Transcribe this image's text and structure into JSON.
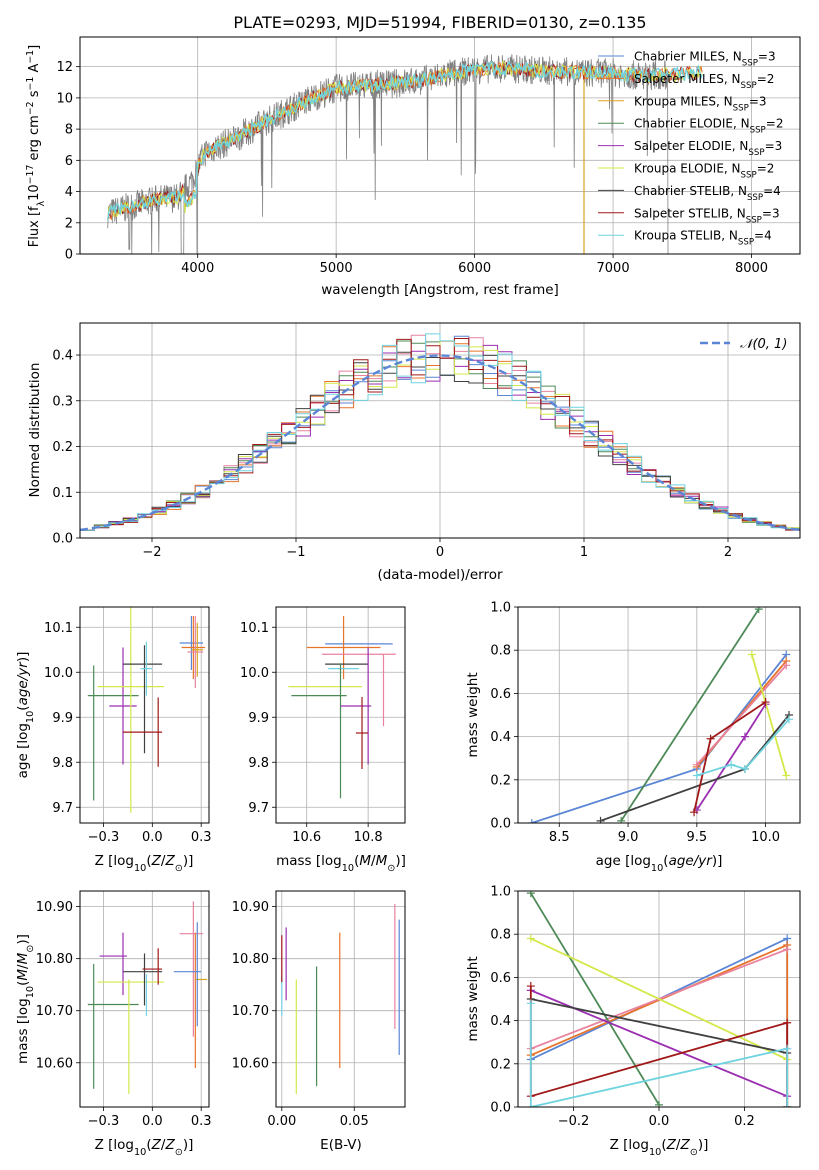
{
  "title": "PLATE=0293, MJD=51994, FIBERID=0130, z=0.135",
  "colors": {
    "Chabrier MILES": "#5b86d6",
    "Salpeter MILES": "#e8742a",
    "Kroupa MILES": "#d9a520",
    "Chabrier ELODIE": "#4e8a58",
    "Salpeter ELODIE": "#9a2fb0",
    "Kroupa ELODIE": "#d4e84a",
    "Chabrier STELIB": "#404040",
    "Salpeter STELIB": "#a01818",
    "Kroupa STELIB": "#6fd3e0",
    "pink": "#e8829e",
    "data": "#808080",
    "normal": "#5b86d6"
  },
  "chart_data": [
    {
      "type": "line",
      "panel": "spectrum",
      "title": "PLATE=0293, MJD=51994, FIBERID=0130, z=0.135",
      "xlabel": "wavelength [Angstrom, rest frame]",
      "ylabel": "Flux [fλ10⁻¹⁷ erg cm⁻² s⁻¹ A⁻¹]",
      "xlim": [
        3150,
        8350
      ],
      "ylim": [
        0,
        13.9
      ],
      "xticks": [
        4000,
        5000,
        6000,
        7000,
        8000
      ],
      "yticks": [
        0,
        2,
        4,
        6,
        8,
        10,
        12
      ],
      "legend_position": "right",
      "legend": [
        {
          "name": "Chabrier MILES",
          "N": "3"
        },
        {
          "name": "Salpeter MILES",
          "N": "2"
        },
        {
          "name": "Kroupa MILES",
          "N": "3"
        },
        {
          "name": "Chabrier ELODIE",
          "N": "2"
        },
        {
          "name": "Salpeter ELODIE",
          "N": "3"
        },
        {
          "name": "Kroupa ELODIE",
          "N": "2"
        },
        {
          "name": "Chabrier STELIB",
          "N": "4"
        },
        {
          "name": "Salpeter STELIB",
          "N": "3"
        },
        {
          "name": "Kroupa STELIB",
          "N": "4"
        }
      ],
      "continuum": {
        "x": [
          3350,
          3500,
          3700,
          3850,
          3950,
          4050,
          4250,
          4450,
          4650,
          4850,
          5000,
          5200,
          5400,
          5600,
          5800,
          6000,
          6200,
          6400,
          6600,
          6800,
          7000,
          7200,
          7400,
          7600,
          7800,
          8000
        ],
        "y": [
          2.6,
          3.0,
          3.5,
          3.6,
          4.6,
          6.5,
          7.3,
          8.3,
          9.2,
          10.1,
          10.6,
          10.8,
          10.9,
          11.1,
          11.5,
          11.8,
          11.9,
          11.8,
          11.7,
          11.6,
          11.6,
          11.4,
          11.5,
          11.6,
          11.7,
          11.7
        ]
      }
    },
    {
      "type": "bar",
      "panel": "residuals",
      "xlabel": "(data-model)/error",
      "ylabel": "Normed distribution",
      "xlim": [
        -2.5,
        2.5
      ],
      "ylim": [
        0,
        0.47
      ],
      "xticks": [
        -2,
        -1,
        0,
        1,
        2
      ],
      "yticks": [
        0.0,
        0.1,
        0.2,
        0.3,
        0.4
      ],
      "legend": [
        "𝒩(0, 1)"
      ],
      "legend_position": "top-right",
      "bin_width": 0.1
    },
    {
      "type": "scatter",
      "panel": "age-vs-Z",
      "xlabel": "Z [log₁₀(Z/Z⊙)]",
      "ylabel": "age  [log₁₀(age/yr)]",
      "xlim": [
        -0.37,
        0.29
      ],
      "ylim": [
        9.665,
        10.145
      ],
      "xticks": [
        -0.25,
        0.0,
        0.25
      ],
      "yticks": [
        9.7,
        9.8,
        9.9,
        10.0,
        10.1
      ],
      "points": [
        {
          "model": "Chabrier MILES",
          "x": 0.2,
          "xerr": 0.06,
          "y": 10.065,
          "yerr": 0.06
        },
        {
          "model": "Salpeter MILES",
          "x": 0.21,
          "xerr": 0.06,
          "y": 10.055,
          "yerr": 0.07
        },
        {
          "model": "pink",
          "x": 0.22,
          "xerr": 0.04,
          "y": 10.045,
          "yerr": 0.08
        },
        {
          "model": "Kroupa MILES",
          "x": 0.23,
          "xerr": 0.03,
          "y": 10.05,
          "yerr": 0.06
        },
        {
          "model": "Chabrier ELODIE",
          "x": -0.3,
          "xerr": 0.0,
          "y": 9.865,
          "yerr": 0.15
        },
        {
          "model": "Chabrier ELODIE",
          "x": -0.2,
          "xerr": 0.13,
          "y": 9.948,
          "yerr": 0.0
        },
        {
          "model": "Salpeter ELODIE",
          "x": -0.15,
          "xerr": 0.07,
          "y": 9.925,
          "yerr": 0.13
        },
        {
          "model": "Kroupa ELODIE",
          "x": -0.11,
          "xerr": 0.17,
          "y": 9.968,
          "yerr": 0.28
        },
        {
          "model": "Chabrier STELIB",
          "x": -0.05,
          "xerr": 0.1,
          "y": 10.018,
          "yerr": 0.0
        },
        {
          "model": "Chabrier STELIB",
          "x": -0.04,
          "xerr": 0.0,
          "y": 9.94,
          "yerr": 0.12
        },
        {
          "model": "Salpeter STELIB",
          "x": -0.05,
          "xerr": 0.1,
          "y": 9.867,
          "yerr": 0.0
        },
        {
          "model": "Salpeter STELIB",
          "x": 0.03,
          "xerr": 0.0,
          "y": 9.867,
          "yerr": 0.077
        },
        {
          "model": "Kroupa STELIB",
          "x": -0.03,
          "xerr": 0.03,
          "y": 10.008,
          "yerr": 0.06
        }
      ]
    },
    {
      "type": "scatter",
      "panel": "age-vs-mass",
      "xlabel": "mass [log₁₀(M/M⊙)]",
      "ylabel": "",
      "xlim": [
        10.5,
        10.92
      ],
      "ylim": [
        9.665,
        10.145
      ],
      "xticks": [
        10.6,
        10.8
      ],
      "yticks": [
        9.7,
        9.8,
        9.9,
        10.0,
        10.1
      ],
      "points": [
        {
          "model": "Chabrier MILES",
          "x": 10.77,
          "xerr": 0.11,
          "y": 10.063,
          "yerr": 0.0
        },
        {
          "model": "Salpeter MILES",
          "x": 10.72,
          "xerr": 0.12,
          "y": 10.055,
          "yerr": 0.07
        },
        {
          "model": "pink",
          "x": 10.77,
          "xerr": 0.12,
          "y": 10.04,
          "yerr": 0.0
        },
        {
          "model": "Chabrier STELIB",
          "x": 10.73,
          "xerr": 0.07,
          "y": 10.018,
          "yerr": 0.0
        },
        {
          "model": "Kroupa STELIB",
          "x": 10.72,
          "xerr": 0.05,
          "y": 10.008,
          "yerr": 0.0
        },
        {
          "model": "Kroupa ELODIE",
          "x": 10.66,
          "xerr": 0.12,
          "y": 9.968,
          "yerr": 0.0
        },
        {
          "model": "Chabrier ELODIE",
          "x": 10.64,
          "xerr": 0.09,
          "y": 9.948,
          "yerr": 0.0
        },
        {
          "model": "Chabrier ELODIE",
          "x": 10.71,
          "xerr": 0.0,
          "y": 9.87,
          "yerr": 0.15
        },
        {
          "model": "Salpeter ELODIE",
          "x": 10.76,
          "xerr": 0.05,
          "y": 9.925,
          "yerr": 0.0
        },
        {
          "model": "Salpeter ELODIE",
          "x": 10.8,
          "xerr": 0.0,
          "y": 9.925,
          "yerr": 0.13
        },
        {
          "model": "Salpeter STELIB",
          "x": 10.78,
          "xerr": 0.02,
          "y": 9.865,
          "yerr": 0.08
        },
        {
          "model": "pink",
          "x": 10.85,
          "xerr": 0.0,
          "y": 9.96,
          "yerr": 0.08
        }
      ]
    },
    {
      "type": "line",
      "panel": "mass-weight-vs-age",
      "xlabel": "age  [log₁₀(age/yr)]",
      "ylabel": "mass weight",
      "xlim": [
        8.2,
        10.25
      ],
      "ylim": [
        0,
        1
      ],
      "xticks": [
        8.5,
        9.0,
        9.5,
        10.0
      ],
      "yticks": [
        0.0,
        0.2,
        0.4,
        0.6,
        0.8,
        1.0
      ],
      "series": [
        {
          "model": "Chabrier MILES",
          "x": [
            8.3,
            9.5,
            10.15
          ],
          "y": [
            0.0,
            0.25,
            0.78
          ]
        },
        {
          "model": "Salpeter MILES",
          "x": [
            9.5,
            10.15
          ],
          "y": [
            0.26,
            0.75
          ]
        },
        {
          "model": "pink",
          "x": [
            9.5,
            10.15
          ],
          "y": [
            0.27,
            0.73
          ]
        },
        {
          "model": "Chabrier ELODIE",
          "x": [
            8.95,
            9.95
          ],
          "y": [
            0.01,
            0.99
          ]
        },
        {
          "model": "Salpeter ELODIE",
          "x": [
            9.5,
            9.85,
            10.0
          ],
          "y": [
            0.06,
            0.4,
            0.55
          ]
        },
        {
          "model": "Kroupa ELODIE",
          "x": [
            9.9,
            10.15
          ],
          "y": [
            0.78,
            0.22
          ]
        },
        {
          "model": "Chabrier STELIB",
          "x": [
            8.8,
            9.85,
            10.17
          ],
          "y": [
            0.01,
            0.25,
            0.5
          ]
        },
        {
          "model": "Salpeter STELIB",
          "x": [
            9.48,
            9.6,
            10.0
          ],
          "y": [
            0.05,
            0.39,
            0.56
          ]
        },
        {
          "model": "Kroupa STELIB",
          "x": [
            9.5,
            9.75,
            9.85,
            10.17
          ],
          "y": [
            0.22,
            0.27,
            0.25,
            0.48
          ]
        }
      ]
    },
    {
      "type": "scatter",
      "panel": "mass-vs-Z",
      "xlabel": "Z [log₁₀(Z/Z⊙)]",
      "ylabel": "mass [log₁₀(M/M⊙)]",
      "xlim": [
        -0.37,
        0.29
      ],
      "ylim": [
        10.515,
        10.93
      ],
      "xticks": [
        -0.25,
        0.0,
        0.25
      ],
      "yticks": [
        10.6,
        10.7,
        10.8,
        10.9
      ],
      "points": [
        {
          "model": "Chabrier ELODIE",
          "x": -0.3,
          "xerr": 0.0,
          "y": 10.67,
          "yerr": 0.12
        },
        {
          "model": "Chabrier ELODIE",
          "x": -0.2,
          "xerr": 0.13,
          "y": 10.712,
          "yerr": 0.0
        },
        {
          "model": "Salpeter ELODIE",
          "x": -0.2,
          "xerr": 0.07,
          "y": 10.805,
          "yerr": 0.0
        },
        {
          "model": "Salpeter ELODIE",
          "x": -0.15,
          "xerr": 0.0,
          "y": 10.79,
          "yerr": 0.06
        },
        {
          "model": "Kroupa ELODIE",
          "x": -0.11,
          "xerr": 0.17,
          "y": 10.755,
          "yerr": 0.0
        },
        {
          "model": "Kroupa ELODIE",
          "x": -0.12,
          "xerr": 0.0,
          "y": 10.65,
          "yerr": 0.11
        },
        {
          "model": "Chabrier STELIB",
          "x": -0.05,
          "xerr": 0.1,
          "y": 10.775,
          "yerr": 0.0
        },
        {
          "model": "Chabrier STELIB",
          "x": -0.04,
          "xerr": 0.0,
          "y": 10.76,
          "yerr": 0.05
        },
        {
          "model": "Salpeter STELIB",
          "x": 0.0,
          "xerr": 0.05,
          "y": 10.78,
          "yerr": 0.0
        },
        {
          "model": "Salpeter STELIB",
          "x": 0.03,
          "xerr": 0.0,
          "y": 10.785,
          "yerr": 0.035
        },
        {
          "model": "Kroupa STELIB",
          "x": -0.03,
          "xerr": 0.0,
          "y": 10.73,
          "yerr": 0.04
        },
        {
          "model": "pink",
          "x": 0.2,
          "xerr": 0.06,
          "y": 10.848,
          "yerr": 0.0
        },
        {
          "model": "pink",
          "x": 0.21,
          "xerr": 0.0,
          "y": 10.78,
          "yerr": 0.13
        },
        {
          "model": "Salpeter MILES",
          "x": 0.22,
          "xerr": 0.0,
          "y": 10.72,
          "yerr": 0.13
        },
        {
          "model": "Kroupa MILES",
          "x": 0.25,
          "xerr": 0.03,
          "y": 10.76,
          "yerr": 0.0
        },
        {
          "model": "Chabrier MILES",
          "x": 0.18,
          "xerr": 0.07,
          "y": 10.775,
          "yerr": 0.0
        },
        {
          "model": "Chabrier MILES",
          "x": 0.23,
          "xerr": 0.0,
          "y": 10.77,
          "yerr": 0.1
        }
      ]
    },
    {
      "type": "scatter",
      "panel": "mass-vs-EBV",
      "xlabel": "E(B-V)",
      "ylabel": "",
      "xlim": [
        -0.004,
        0.085
      ],
      "ylim": [
        10.515,
        10.93
      ],
      "xticks": [
        0.0,
        0.05
      ],
      "yticks": [
        10.6,
        10.7,
        10.8,
        10.9
      ],
      "points": [
        {
          "model": "Kroupa STELIB",
          "x": 0.0,
          "y": 10.73,
          "yerr": 0.04
        },
        {
          "model": "Salpeter STELIB",
          "x": 0.0,
          "y": 10.8,
          "yerr": 0.045
        },
        {
          "model": "Salpeter ELODIE",
          "x": 0.003,
          "y": 10.79,
          "yerr": 0.07
        },
        {
          "model": "Kroupa ELODIE",
          "x": 0.01,
          "y": 10.65,
          "yerr": 0.11
        },
        {
          "model": "Chabrier ELODIE",
          "x": 0.024,
          "y": 10.67,
          "yerr": 0.115
        },
        {
          "model": "Salpeter MILES",
          "x": 0.04,
          "y": 10.72,
          "yerr": 0.13
        },
        {
          "model": "pink",
          "x": 0.078,
          "y": 10.785,
          "yerr": 0.12
        },
        {
          "model": "Chabrier MILES",
          "x": 0.081,
          "y": 10.745,
          "yerr": 0.13
        }
      ]
    },
    {
      "type": "line",
      "panel": "mass-weight-vs-Z",
      "xlabel": "Z [log₁₀(Z/Z⊙)]",
      "ylabel": "mass weight",
      "xlim": [
        -0.33,
        0.33
      ],
      "ylim": [
        0,
        1
      ],
      "xticks": [
        -0.2,
        0.0,
        0.2
      ],
      "yticks": [
        0.0,
        0.2,
        0.4,
        0.6,
        0.8,
        1.0
      ],
      "series": [
        {
          "model": "Chabrier MILES",
          "x": [
            -0.3,
            0.3,
            0.3
          ],
          "y": [
            0.22,
            0.78,
            0.0
          ]
        },
        {
          "model": "Salpeter MILES",
          "x": [
            -0.3,
            0.3,
            0.3
          ],
          "y": [
            0.24,
            0.75,
            0.0
          ]
        },
        {
          "model": "pink",
          "x": [
            -0.3,
            0.3
          ],
          "y": [
            0.27,
            0.73
          ]
        },
        {
          "model": "Chabrier ELODIE",
          "x": [
            -0.3,
            0.0
          ],
          "y": [
            0.99,
            0.01
          ]
        },
        {
          "model": "Salpeter ELODIE",
          "x": [
            -0.3,
            0.3
          ],
          "y": [
            0.54,
            0.05
          ]
        },
        {
          "model": "Kroupa ELODIE",
          "x": [
            -0.3,
            0.3
          ],
          "y": [
            0.78,
            0.22
          ]
        },
        {
          "model": "Chabrier STELIB",
          "x": [
            -0.3,
            0.3
          ],
          "y": [
            0.5,
            0.25
          ]
        },
        {
          "model": "Salpeter STELIB",
          "x": [
            -0.3,
            -0.3,
            0.3,
            0.3
          ],
          "y": [
            0.56,
            0.05,
            0.39,
            0.0
          ]
        },
        {
          "model": "Kroupa STELIB",
          "x": [
            -0.3,
            -0.3,
            0.3,
            0.3
          ],
          "y": [
            0.48,
            0.0,
            0.27,
            0.0
          ]
        }
      ]
    }
  ]
}
